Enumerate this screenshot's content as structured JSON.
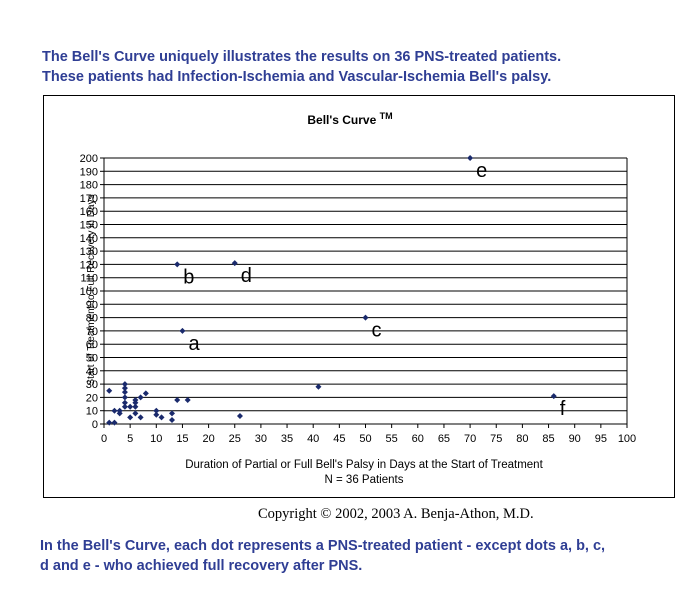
{
  "header": {
    "line1": "The Bell's Curve uniquely illustrates the results on 36 PNS-treated patients.",
    "line2": "These patients had Infection-Ischemia and Vascular-Ischemia Bell's palsy."
  },
  "footer": {
    "copyright": "Copyright © 2002, 2003 A. Benja-Athon, M.D.",
    "line1": "In the Bell's Curve, each dot represents a PNS-treated patient - except dots a, b, c,",
    "line2": "d and e - who achieved full recovery after PNS."
  },
  "chart_data": {
    "type": "scatter",
    "title": "Bell's Curve",
    "title_mark": "TM",
    "xlabel": "Duration of Partial or Full Bell's Palsy in Days at the Start of Treatment",
    "xlabel2": "N = 36 Patients",
    "ylabel": "Start of Treatment to Full Recovery in Days",
    "xlim": [
      0,
      100
    ],
    "ylim": [
      0,
      200
    ],
    "xtick_step": 5,
    "ytick_step": 10,
    "grid": "horizontal",
    "marker_color": "#1a2a6c",
    "points": [
      {
        "x": 1,
        "y": 1
      },
      {
        "x": 2,
        "y": 1
      },
      {
        "x": 1,
        "y": 25
      },
      {
        "x": 2,
        "y": 10
      },
      {
        "x": 3,
        "y": 8
      },
      {
        "x": 3,
        "y": 10
      },
      {
        "x": 4,
        "y": 20
      },
      {
        "x": 4,
        "y": 24
      },
      {
        "x": 4,
        "y": 27
      },
      {
        "x": 4,
        "y": 30
      },
      {
        "x": 4,
        "y": 13
      },
      {
        "x": 4,
        "y": 16
      },
      {
        "x": 5,
        "y": 5
      },
      {
        "x": 5,
        "y": 13
      },
      {
        "x": 6,
        "y": 8
      },
      {
        "x": 6,
        "y": 13
      },
      {
        "x": 6,
        "y": 16
      },
      {
        "x": 6,
        "y": 18
      },
      {
        "x": 7,
        "y": 5
      },
      {
        "x": 7,
        "y": 20
      },
      {
        "x": 8,
        "y": 23
      },
      {
        "x": 10,
        "y": 7
      },
      {
        "x": 10,
        "y": 10
      },
      {
        "x": 11,
        "y": 5
      },
      {
        "x": 13,
        "y": 3
      },
      {
        "x": 13,
        "y": 8
      },
      {
        "x": 14,
        "y": 18
      },
      {
        "x": 16,
        "y": 18
      },
      {
        "x": 26,
        "y": 6
      },
      {
        "x": 41,
        "y": 28
      },
      {
        "x": 86,
        "y": 21
      },
      {
        "x": 15,
        "y": 70
      },
      {
        "x": 14,
        "y": 120
      },
      {
        "x": 50,
        "y": 80
      },
      {
        "x": 25,
        "y": 121
      },
      {
        "x": 70,
        "y": 200
      }
    ],
    "annotations": [
      {
        "label": "a",
        "x": 15,
        "y": 70
      },
      {
        "label": "b",
        "x": 14,
        "y": 120
      },
      {
        "label": "c",
        "x": 50,
        "y": 80
      },
      {
        "label": "d",
        "x": 25,
        "y": 121
      },
      {
        "label": "e",
        "x": 70,
        "y": 200
      },
      {
        "label": "f",
        "x": 86,
        "y": 21
      }
    ]
  }
}
